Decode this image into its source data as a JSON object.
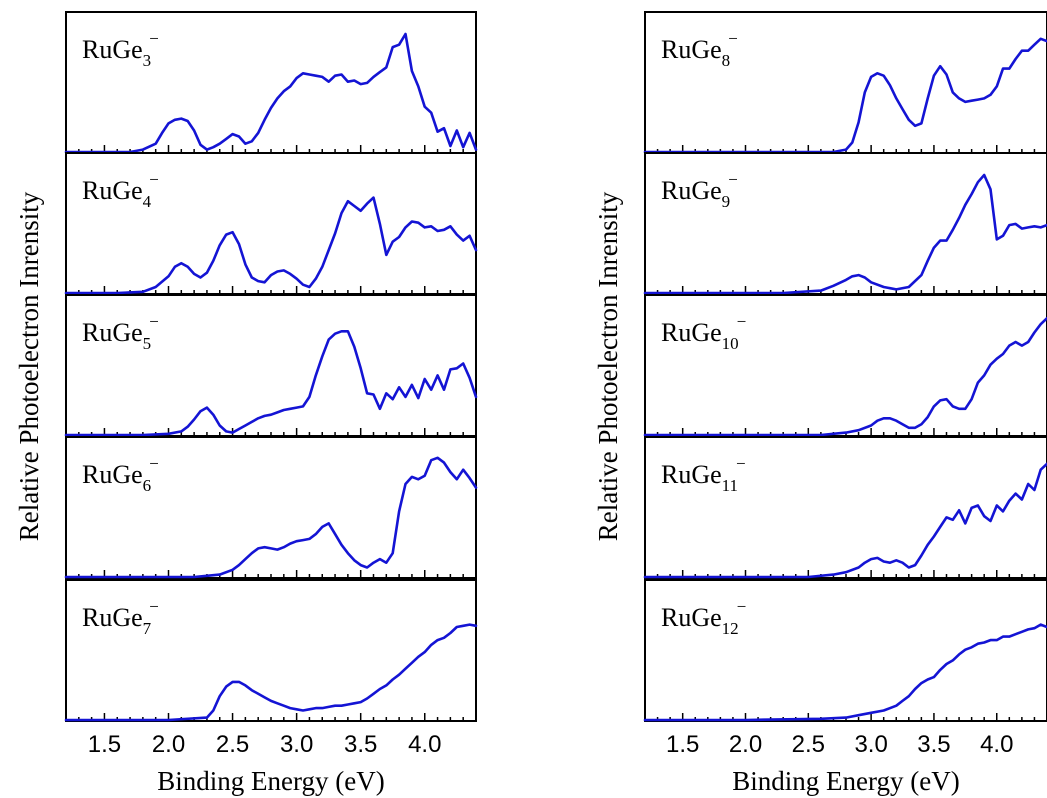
{
  "chart_data": [
    {
      "type": "line",
      "column": "left",
      "xlabel": "Binding Energy (eV)",
      "ylabel": "Relative Photoelectron Inrensity",
      "xlim": [
        1.2,
        4.4
      ],
      "xticks": [
        "1.5",
        "2.0",
        "2.5",
        "3.0",
        "3.5",
        "4.0"
      ],
      "panels": [
        {
          "label": "RuGe",
          "subscript": "3",
          "superscript": "−",
          "x": [
            1.2,
            1.5,
            1.7,
            1.8,
            1.9,
            1.95,
            2.0,
            2.05,
            2.1,
            2.15,
            2.2,
            2.25,
            2.3,
            2.35,
            2.4,
            2.45,
            2.5,
            2.55,
            2.6,
            2.65,
            2.7,
            2.75,
            2.8,
            2.85,
            2.9,
            2.95,
            3.0,
            3.05,
            3.1,
            3.15,
            3.2,
            3.25,
            3.3,
            3.35,
            3.4,
            3.45,
            3.5,
            3.55,
            3.6,
            3.65,
            3.7,
            3.75,
            3.8,
            3.85,
            3.9,
            3.95,
            4.0,
            4.05,
            4.1,
            4.15,
            4.2,
            4.25,
            4.3,
            4.35,
            4.4
          ],
          "y": [
            0,
            0,
            0,
            0.02,
            0.07,
            0.16,
            0.24,
            0.27,
            0.28,
            0.26,
            0.18,
            0.06,
            0.02,
            0.04,
            0.07,
            0.11,
            0.15,
            0.13,
            0.07,
            0.09,
            0.16,
            0.27,
            0.37,
            0.45,
            0.51,
            0.55,
            0.62,
            0.66,
            0.65,
            0.64,
            0.63,
            0.59,
            0.64,
            0.65,
            0.59,
            0.6,
            0.57,
            0.58,
            0.63,
            0.67,
            0.71,
            0.88,
            0.9,
            0.99,
            0.68,
            0.55,
            0.38,
            0.33,
            0.17,
            0.2,
            0.05,
            0.18,
            0.04,
            0.16,
            0.02
          ]
        },
        {
          "label": "RuGe",
          "subscript": "4",
          "superscript": "−",
          "x": [
            1.2,
            1.6,
            1.8,
            1.9,
            2.0,
            2.05,
            2.1,
            2.15,
            2.2,
            2.25,
            2.3,
            2.35,
            2.4,
            2.45,
            2.5,
            2.55,
            2.6,
            2.65,
            2.7,
            2.75,
            2.8,
            2.85,
            2.9,
            2.95,
            3.0,
            3.05,
            3.1,
            3.15,
            3.2,
            3.25,
            3.3,
            3.35,
            3.4,
            3.45,
            3.5,
            3.55,
            3.6,
            3.65,
            3.7,
            3.75,
            3.8,
            3.85,
            3.9,
            3.95,
            4.0,
            4.05,
            4.1,
            4.15,
            4.2,
            4.25,
            4.3,
            4.35,
            4.4
          ],
          "y": [
            0,
            0,
            0.01,
            0.05,
            0.14,
            0.22,
            0.25,
            0.22,
            0.16,
            0.13,
            0.17,
            0.27,
            0.4,
            0.49,
            0.51,
            0.41,
            0.24,
            0.13,
            0.1,
            0.09,
            0.15,
            0.18,
            0.19,
            0.16,
            0.12,
            0.07,
            0.05,
            0.12,
            0.22,
            0.36,
            0.5,
            0.67,
            0.77,
            0.73,
            0.69,
            0.75,
            0.8,
            0.58,
            0.32,
            0.43,
            0.47,
            0.55,
            0.6,
            0.59,
            0.55,
            0.56,
            0.52,
            0.53,
            0.56,
            0.49,
            0.44,
            0.48,
            0.36
          ]
        },
        {
          "label": "RuGe",
          "subscript": "5",
          "superscript": "−",
          "x": [
            1.2,
            1.8,
            2.0,
            2.1,
            2.15,
            2.2,
            2.25,
            2.3,
            2.35,
            2.4,
            2.45,
            2.5,
            2.55,
            2.6,
            2.65,
            2.7,
            2.75,
            2.8,
            2.85,
            2.9,
            2.95,
            3.0,
            3.05,
            3.1,
            3.15,
            3.2,
            3.25,
            3.3,
            3.35,
            3.4,
            3.45,
            3.5,
            3.55,
            3.6,
            3.65,
            3.7,
            3.75,
            3.8,
            3.85,
            3.9,
            3.95,
            4.0,
            4.05,
            4.1,
            4.15,
            4.2,
            4.25,
            4.3,
            4.35,
            4.4
          ],
          "y": [
            0,
            0,
            0.01,
            0.03,
            0.07,
            0.13,
            0.2,
            0.23,
            0.17,
            0.08,
            0.03,
            0.02,
            0.05,
            0.08,
            0.11,
            0.14,
            0.16,
            0.17,
            0.19,
            0.21,
            0.22,
            0.23,
            0.24,
            0.32,
            0.5,
            0.66,
            0.8,
            0.85,
            0.87,
            0.87,
            0.74,
            0.56,
            0.35,
            0.34,
            0.22,
            0.35,
            0.3,
            0.4,
            0.32,
            0.42,
            0.31,
            0.47,
            0.38,
            0.5,
            0.38,
            0.55,
            0.56,
            0.6,
            0.48,
            0.32
          ]
        },
        {
          "label": "RuGe",
          "subscript": "6",
          "superscript": "−",
          "x": [
            1.2,
            2.0,
            2.2,
            2.3,
            2.4,
            2.5,
            2.55,
            2.6,
            2.65,
            2.7,
            2.75,
            2.8,
            2.85,
            2.9,
            2.95,
            3.0,
            3.05,
            3.1,
            3.15,
            3.2,
            3.25,
            3.3,
            3.35,
            3.4,
            3.45,
            3.5,
            3.55,
            3.6,
            3.65,
            3.7,
            3.75,
            3.8,
            3.85,
            3.9,
            3.95,
            4.0,
            4.05,
            4.1,
            4.15,
            4.2,
            4.25,
            4.3,
            4.35,
            4.4
          ],
          "y": [
            0,
            0,
            0,
            0.01,
            0.02,
            0.06,
            0.1,
            0.15,
            0.2,
            0.24,
            0.25,
            0.24,
            0.23,
            0.25,
            0.28,
            0.3,
            0.31,
            0.32,
            0.36,
            0.42,
            0.45,
            0.36,
            0.27,
            0.2,
            0.14,
            0.1,
            0.08,
            0.12,
            0.15,
            0.12,
            0.2,
            0.55,
            0.78,
            0.84,
            0.82,
            0.85,
            0.98,
            1.0,
            0.96,
            0.88,
            0.82,
            0.9,
            0.83,
            0.75
          ]
        },
        {
          "label": "RuGe",
          "subscript": "7",
          "superscript": "−",
          "x": [
            1.2,
            2.0,
            2.3,
            2.35,
            2.4,
            2.45,
            2.5,
            2.55,
            2.6,
            2.65,
            2.7,
            2.75,
            2.8,
            2.85,
            2.9,
            2.95,
            3.0,
            3.05,
            3.1,
            3.15,
            3.2,
            3.25,
            3.3,
            3.35,
            3.4,
            3.45,
            3.5,
            3.55,
            3.6,
            3.65,
            3.7,
            3.75,
            3.8,
            3.85,
            3.9,
            3.95,
            4.0,
            4.05,
            4.1,
            4.15,
            4.2,
            4.25,
            4.3,
            4.35,
            4.4
          ],
          "y": [
            0,
            0,
            0.02,
            0.08,
            0.2,
            0.28,
            0.32,
            0.32,
            0.29,
            0.25,
            0.22,
            0.19,
            0.16,
            0.14,
            0.12,
            0.1,
            0.09,
            0.08,
            0.09,
            0.1,
            0.1,
            0.11,
            0.12,
            0.12,
            0.13,
            0.14,
            0.15,
            0.18,
            0.22,
            0.26,
            0.29,
            0.34,
            0.38,
            0.43,
            0.48,
            0.53,
            0.57,
            0.63,
            0.67,
            0.69,
            0.73,
            0.78,
            0.79,
            0.8,
            0.79
          ]
        }
      ]
    },
    {
      "type": "line",
      "column": "right",
      "xlabel": "Binding Energy (eV)",
      "ylabel": "Relative Photoelectron Inrensity",
      "xlim": [
        1.2,
        4.4
      ],
      "xticks": [
        "1.5",
        "2.0",
        "2.5",
        "3.0",
        "3.5",
        "4.0"
      ],
      "panels": [
        {
          "label": "RuGe",
          "subscript": "8",
          "superscript": "−",
          "x": [
            1.2,
            2.5,
            2.7,
            2.8,
            2.85,
            2.9,
            2.95,
            3.0,
            3.05,
            3.1,
            3.15,
            3.2,
            3.25,
            3.3,
            3.35,
            3.4,
            3.45,
            3.5,
            3.55,
            3.6,
            3.65,
            3.7,
            3.75,
            3.8,
            3.85,
            3.9,
            3.95,
            4.0,
            4.05,
            4.1,
            4.15,
            4.2,
            4.25,
            4.3,
            4.35,
            4.4
          ],
          "y": [
            0,
            0,
            0,
            0.02,
            0.08,
            0.25,
            0.5,
            0.63,
            0.66,
            0.64,
            0.56,
            0.45,
            0.36,
            0.27,
            0.22,
            0.24,
            0.45,
            0.64,
            0.72,
            0.65,
            0.5,
            0.45,
            0.42,
            0.43,
            0.44,
            0.45,
            0.48,
            0.55,
            0.7,
            0.7,
            0.78,
            0.85,
            0.85,
            0.9,
            0.95,
            0.93
          ]
        },
        {
          "label": "RuGe",
          "subscript": "9",
          "superscript": "−",
          "x": [
            1.2,
            2.3,
            2.6,
            2.7,
            2.8,
            2.85,
            2.9,
            2.95,
            3.0,
            3.1,
            3.2,
            3.3,
            3.4,
            3.45,
            3.5,
            3.55,
            3.6,
            3.65,
            3.7,
            3.75,
            3.8,
            3.85,
            3.9,
            3.95,
            4.0,
            4.05,
            4.1,
            4.15,
            4.2,
            4.25,
            4.3,
            4.35,
            4.4
          ],
          "y": [
            0,
            0,
            0.02,
            0.06,
            0.11,
            0.14,
            0.15,
            0.13,
            0.09,
            0.05,
            0.03,
            0.05,
            0.15,
            0.27,
            0.38,
            0.44,
            0.44,
            0.53,
            0.63,
            0.74,
            0.83,
            0.93,
            0.99,
            0.87,
            0.45,
            0.48,
            0.57,
            0.58,
            0.54,
            0.55,
            0.56,
            0.55,
            0.57
          ]
        },
        {
          "label": "RuGe",
          "subscript": "10",
          "superscript": "−",
          "x": [
            1.2,
            2.6,
            2.8,
            2.9,
            3.0,
            3.05,
            3.1,
            3.15,
            3.2,
            3.25,
            3.3,
            3.35,
            3.4,
            3.45,
            3.5,
            3.55,
            3.6,
            3.65,
            3.7,
            3.75,
            3.8,
            3.85,
            3.9,
            3.95,
            4.0,
            4.05,
            4.1,
            4.15,
            4.2,
            4.25,
            4.3,
            4.35,
            4.4
          ],
          "y": [
            0,
            0,
            0.02,
            0.04,
            0.08,
            0.12,
            0.14,
            0.14,
            0.12,
            0.09,
            0.06,
            0.06,
            0.09,
            0.15,
            0.24,
            0.29,
            0.3,
            0.24,
            0.22,
            0.22,
            0.3,
            0.44,
            0.5,
            0.59,
            0.64,
            0.68,
            0.75,
            0.78,
            0.75,
            0.78,
            0.86,
            0.93,
            0.98
          ]
        },
        {
          "label": "RuGe",
          "subscript": "11",
          "superscript": "−",
          "x": [
            1.2,
            2.5,
            2.7,
            2.8,
            2.9,
            2.95,
            3.0,
            3.05,
            3.1,
            3.15,
            3.2,
            3.25,
            3.3,
            3.35,
            3.4,
            3.45,
            3.5,
            3.55,
            3.6,
            3.65,
            3.7,
            3.75,
            3.8,
            3.85,
            3.9,
            3.95,
            4.0,
            4.05,
            4.1,
            4.15,
            4.2,
            4.25,
            4.3,
            4.35,
            4.4
          ],
          "y": [
            0,
            0,
            0.02,
            0.04,
            0.08,
            0.12,
            0.15,
            0.16,
            0.13,
            0.12,
            0.14,
            0.12,
            0.08,
            0.1,
            0.18,
            0.27,
            0.34,
            0.42,
            0.5,
            0.48,
            0.56,
            0.45,
            0.58,
            0.6,
            0.51,
            0.47,
            0.6,
            0.55,
            0.64,
            0.7,
            0.65,
            0.78,
            0.73,
            0.9,
            0.95
          ]
        },
        {
          "label": "RuGe",
          "subscript": "12",
          "superscript": "−",
          "x": [
            1.2,
            2.0,
            2.6,
            2.8,
            2.9,
            3.0,
            3.1,
            3.2,
            3.25,
            3.3,
            3.35,
            3.4,
            3.45,
            3.5,
            3.55,
            3.6,
            3.65,
            3.7,
            3.75,
            3.8,
            3.85,
            3.9,
            3.95,
            4.0,
            4.05,
            4.1,
            4.15,
            4.2,
            4.25,
            4.3,
            4.35,
            4.4
          ],
          "y": [
            0,
            0,
            0.01,
            0.02,
            0.04,
            0.06,
            0.08,
            0.12,
            0.16,
            0.2,
            0.26,
            0.31,
            0.34,
            0.36,
            0.42,
            0.47,
            0.5,
            0.55,
            0.59,
            0.61,
            0.64,
            0.65,
            0.67,
            0.67,
            0.7,
            0.7,
            0.72,
            0.74,
            0.76,
            0.77,
            0.8,
            0.78
          ]
        }
      ]
    }
  ]
}
